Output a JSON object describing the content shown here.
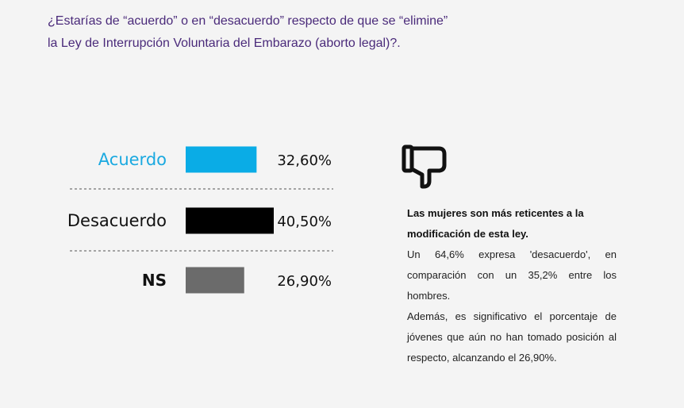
{
  "question": {
    "line1": "¿Estarías de “acuerdo” o en “desacuerdo” respecto de que se “elimine”",
    "line2": "la Ley de Interrupción Voluntaria del Embarazo (aborto legal)?."
  },
  "chart_data": {
    "type": "bar",
    "orientation": "horizontal",
    "categories": [
      "Acuerdo",
      "Desacuerdo",
      "NS"
    ],
    "values": [
      32.6,
      40.5,
      26.9
    ],
    "value_labels": [
      "32,60%",
      "40,50%",
      "26,90%"
    ],
    "colors": [
      "#0aace6",
      "#000000",
      "#6b6b6b"
    ],
    "label_colors": [
      "#1aa9e0",
      "#111111",
      "#111111"
    ],
    "separators": "dashed",
    "grid": false,
    "legend": "none"
  },
  "icon": {
    "name": "thumbs-down-icon"
  },
  "note": {
    "bold_line1": "Las mujeres son más reticentes a la",
    "bold_line2": "modificación de esta ley.",
    "p1": "Un 64,6% expresa 'desacuerdo', en comparación con un 35,2% entre los hombres.",
    "p2": "Además, es significativo el porcentaje de jóvenes que aún no han tomado posición al respecto, alcanzando el 26,90%."
  }
}
